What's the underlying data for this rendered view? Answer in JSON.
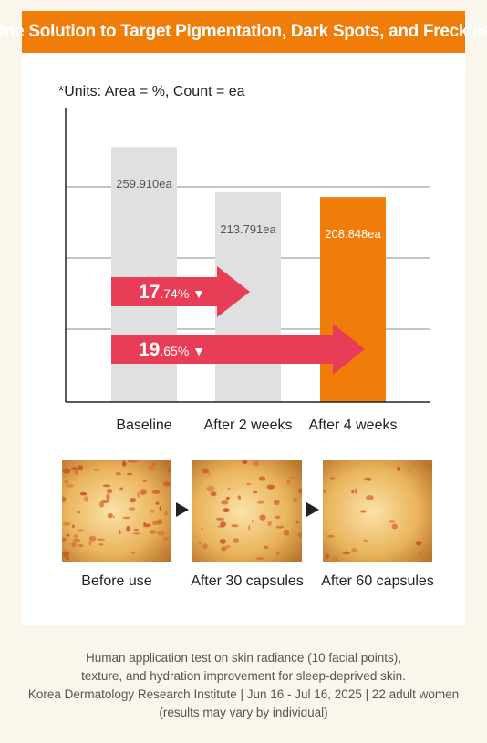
{
  "header": {
    "title": "One Solution to Target Pigmentation, Dark Spots, and Freckles."
  },
  "units_note": "*Units: Area = %, Count = ea",
  "colors": {
    "accent": "#f07c0a",
    "arrow": "#e83d56",
    "bar": "#e0e0e0"
  },
  "chart_data": {
    "type": "bar",
    "categories": [
      "Baseline",
      "After 2 weeks",
      "After 4 weeks"
    ],
    "values": [
      259.91,
      213.791,
      208.848
    ],
    "data_labels": [
      "259.910ea",
      "213.791ea",
      "208.848ea"
    ],
    "bar_colors": [
      "#e0e0e0",
      "#e0e0e0",
      "#f07c0a"
    ],
    "ylim": [
      0,
      300
    ],
    "grid": true,
    "annotations": [
      {
        "from": "Baseline",
        "to": "After 2 weeks",
        "big": "17",
        "small": ".74% ▼"
      },
      {
        "from": "Baseline",
        "to": "After 4 weeks",
        "big": "19",
        "small": ".65% ▼"
      }
    ]
  },
  "photos": [
    {
      "caption": "Before use",
      "spot_level": "high"
    },
    {
      "caption": "After 30 capsules",
      "spot_level": "medium"
    },
    {
      "caption": "After 60 capsules",
      "spot_level": "low"
    }
  ],
  "footer": {
    "line1": "Human application test on skin radiance (10 facial points),",
    "line2": "texture, and hydration improvement for sleep-deprived skin.",
    "line3": "Korea Dermatology Research Institute | Jun 16 - Jul 16, 2025 | 22 adult women",
    "line4": "(results may vary by individual)"
  }
}
